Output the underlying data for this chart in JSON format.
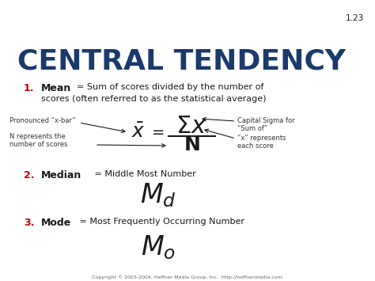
{
  "title": "CENTRAL TENDENCY",
  "title_color": "#1a3a6b",
  "slide_number": "1.23",
  "background_color": "#ffffff",
  "item1_bold": "Mean",
  "item1_rest1": " = Sum of scores divided by the number of",
  "item1_rest2": "scores (often referred to as the statistical average)",
  "item2_bold": "Median",
  "item2_rest": " = Middle Most Number",
  "item3_bold": "Mode",
  "item3_rest": " = Most Frequently Occurring Number",
  "note_xbar": "Pronounced “x-bar”",
  "note_N": "N represents the\nnumber of scores",
  "note_sigma": "Capital Sigma for\n“Sum of”",
  "note_x": "“x” represents\neach score",
  "copyright": "Copyright © 2003-2004, Heffner Media Group, Inc.  http://heffnermedia.com.",
  "number_color": "#cc0000",
  "text_color": "#1a1a1a",
  "note_color": "#333333"
}
